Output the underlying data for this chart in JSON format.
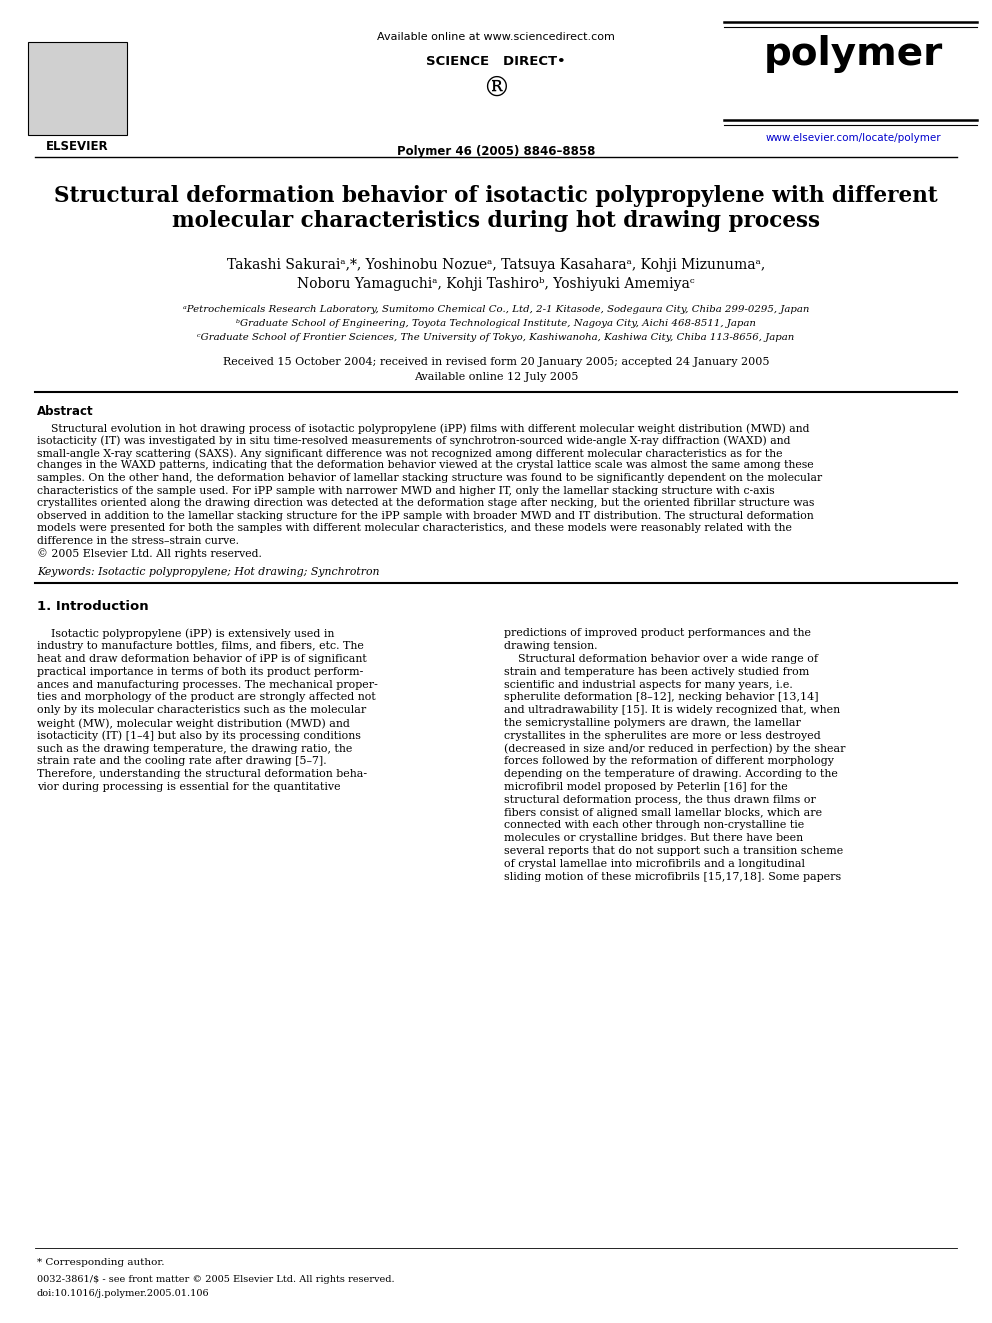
{
  "bg_color": "#ffffff",
  "title_line1": "Structural deformation behavior of isotactic polypropylene with different",
  "title_line2": "molecular characteristics during hot drawing process",
  "author_line1": "Takashi Sakuraiᵃ,*, Yoshinobu Nozueᵃ, Tatsuya Kasaharaᵃ, Kohji Mizunumaᵃ,",
  "author_line2": "Noboru Yamaguchiᵃ, Kohji Tashiroᵇ, Yoshiyuki Amemiyaᶜ",
  "affil_a": "ᵃPetrochemicals Research Laboratory, Sumitomo Chemical Co., Ltd, 2-1 Kitasode, Sodegaura City, Chiba 299-0295, Japan",
  "affil_b": "ᵇGraduate School of Engineering, Toyota Technological Institute, Nagoya City, Aichi 468-8511, Japan",
  "affil_c": "ᶜGraduate School of Frontier Sciences, The University of Tokyo, Kashiwanoha, Kashiwa City, Chiba 113-8656, Japan",
  "date_line1": "Received 15 October 2004; received in revised form 20 January 2005; accepted 24 January 2005",
  "date_line2": "Available online 12 July 2005",
  "journal_ref": "Polymer 46 (2005) 8846–8858",
  "available_online": "Available online at www.sciencedirect.com",
  "science_direct": "SCIENCE   DIRECT•",
  "journal_name": "polymer",
  "url": "www.elsevier.com/locate/polymer",
  "elsevier_text": "ELSEVIER",
  "abstract_title": "Abstract",
  "keywords": "Keywords: Isotactic polypropylene; Hot drawing; Synchrotron",
  "section1_title": "1. Introduction",
  "footnote_corresponding": "* Corresponding author.",
  "footnote_issn": "0032-3861/$ - see front matter © 2005 Elsevier Ltd. All rights reserved.",
  "footnote_doi": "doi:10.1016/j.polymer.2005.01.106",
  "abstract_lines": [
    "    Structural evolution in hot drawing process of isotactic polypropylene (iPP) films with different molecular weight distribution (MWD) and",
    "isotacticity (IT) was investigated by in situ time-resolved measurements of synchrotron-sourced wide-angle X-ray diffraction (WAXD) and",
    "small-angle X-ray scattering (SAXS). Any significant difference was not recognized among different molecular characteristics as for the",
    "changes in the WAXD patterns, indicating that the deformation behavior viewed at the crystal lattice scale was almost the same among these",
    "samples. On the other hand, the deformation behavior of lamellar stacking structure was found to be significantly dependent on the molecular",
    "characteristics of the sample used. For iPP sample with narrower MWD and higher IT, only the lamellar stacking structure with c-axis",
    "crystallites oriented along the drawing direction was detected at the deformation stage after necking, but the oriented fibrillar structure was",
    "observed in addition to the lamellar stacking structure for the iPP sample with broader MWD and IT distribution. The structural deformation",
    "models were presented for both the samples with different molecular characteristics, and these models were reasonably related with the",
    "difference in the stress–strain curve.",
    "© 2005 Elsevier Ltd. All rights reserved."
  ],
  "col1_lines": [
    "    Isotactic polypropylene (iPP) is extensively used in",
    "industry to manufacture bottles, films, and fibers, etc. The",
    "heat and draw deformation behavior of iPP is of significant",
    "practical importance in terms of both its product perform-",
    "ances and manufacturing processes. The mechanical proper-",
    "ties and morphology of the product are strongly affected not",
    "only by its molecular characteristics such as the molecular",
    "weight (MW), molecular weight distribution (MWD) and",
    "isotacticity (IT) [1–4] but also by its processing conditions",
    "such as the drawing temperature, the drawing ratio, the",
    "strain rate and the cooling rate after drawing [5–7].",
    "Therefore, understanding the structural deformation beha-",
    "vior during processing is essential for the quantitative"
  ],
  "col2_lines": [
    "predictions of improved product performances and the",
    "drawing tension.",
    "    Structural deformation behavior over a wide range of",
    "strain and temperature has been actively studied from",
    "scientific and industrial aspects for many years, i.e.",
    "spherulite deformation [8–12], necking behavior [13,14]",
    "and ultradrawability [15]. It is widely recognized that, when",
    "the semicrystalline polymers are drawn, the lamellar",
    "crystallites in the spherulites are more or less destroyed",
    "(decreased in size and/or reduced in perfection) by the shear",
    "forces followed by the reformation of different morphology",
    "depending on the temperature of drawing. According to the",
    "microfibril model proposed by Peterlin [16] for the",
    "structural deformation process, the thus drawn films or",
    "fibers consist of aligned small lamellar blocks, which are",
    "connected with each other through non-crystalline tie",
    "molecules or crystalline bridges. But there have been",
    "several reports that do not support such a transition scheme",
    "of crystal lamellae into microfibrils and a longitudinal",
    "sliding motion of these microfibrils [15,17,18]. Some papers"
  ]
}
